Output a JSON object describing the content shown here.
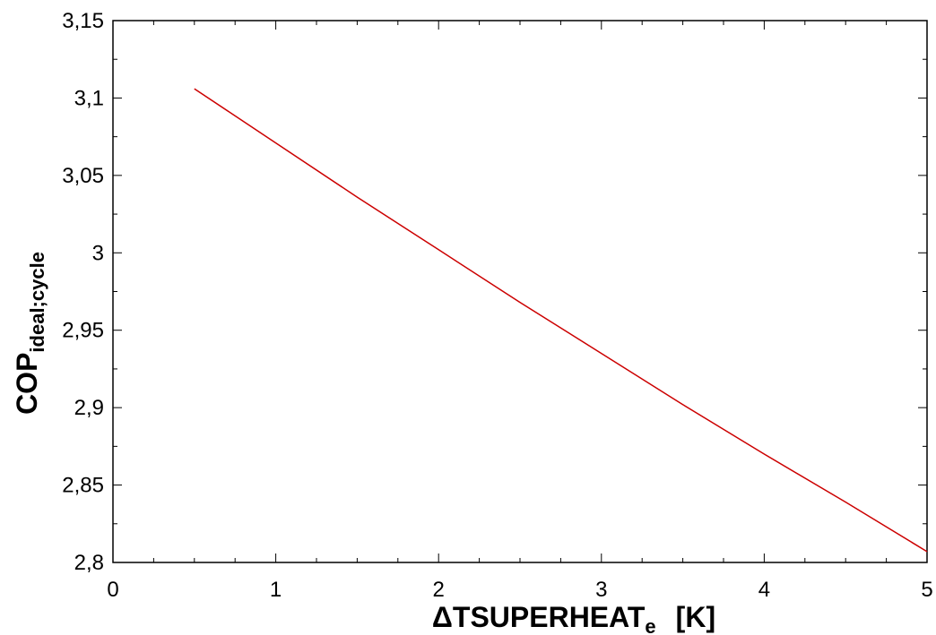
{
  "chart_data": {
    "type": "line",
    "title": "",
    "xlabel": {
      "main": "ΔTSUPERHEAT",
      "sub": "e",
      "unit": "[K]"
    },
    "ylabel": {
      "main": "COP",
      "sub": "ideal;cycle"
    },
    "xlim": [
      0,
      5
    ],
    "ylim": [
      2.8,
      3.15
    ],
    "x_ticks": [
      0,
      1,
      2,
      3,
      4,
      5
    ],
    "x_tick_labels": [
      "0",
      "1",
      "2",
      "3",
      "4",
      "5"
    ],
    "y_ticks": [
      2.8,
      2.85,
      2.9,
      2.95,
      3.0,
      3.05,
      3.1,
      3.15
    ],
    "y_tick_labels": [
      "2,8",
      "2,85",
      "2,9",
      "2,95",
      "3",
      "3,05",
      "3,1",
      "3,15"
    ],
    "grid": false,
    "line_color": "#cc0000",
    "series": [
      {
        "x": [
          0.5,
          1.0,
          1.5,
          2.0,
          2.5,
          3.0,
          3.5,
          4.0,
          4.5,
          5.0
        ],
        "y": [
          3.106,
          3.071,
          3.036,
          3.002,
          2.968,
          2.935,
          2.902,
          2.87,
          2.839,
          2.807
        ]
      }
    ]
  }
}
